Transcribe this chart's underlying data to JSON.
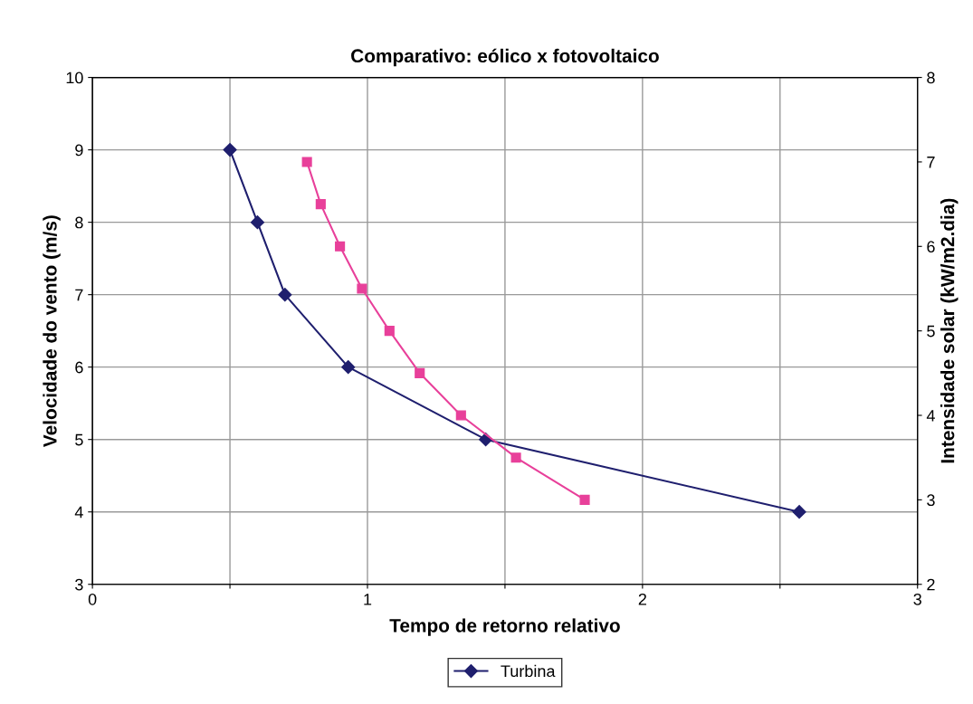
{
  "chart_data": {
    "type": "line",
    "title": "Comparativo: eólico x fotovoltaico",
    "xlabel": "Tempo de retorno relativo",
    "ylabel": "Velocidade do vento (m/s)",
    "y2label": "Intensidade solar (kW/m2.dia)",
    "xlim": [
      0,
      3
    ],
    "xticks": [
      0,
      {
        "value": 0.5,
        "label": null
      },
      1,
      {
        "value": 1.5,
        "label": null
      },
      2,
      {
        "value": 2.5,
        "label": null
      },
      3
    ],
    "ylim": [
      3,
      10
    ],
    "yticks": [
      3,
      4,
      5,
      6,
      7,
      8,
      9,
      10
    ],
    "y2lim": [
      2,
      8
    ],
    "y2ticks": [
      2,
      3,
      4,
      5,
      6,
      7,
      8
    ],
    "grid": true,
    "legend": "bottom",
    "line_style": "solid",
    "series": [
      {
        "name": "Turbina",
        "color": "#1f1f6e",
        "marker": "diamond",
        "x": [
          0.5,
          0.6,
          0.7,
          0.93,
          1.43,
          2.57
        ],
        "values": [
          9,
          8,
          7,
          6,
          5,
          4
        ]
      },
      {
        "color": "#e8409a",
        "marker": "square",
        "axis": "y2",
        "x": [
          0.78,
          0.83,
          0.9,
          0.98,
          1.08,
          1.19,
          1.34,
          1.54,
          1.79
        ],
        "values": [
          7,
          6.5,
          6,
          5.5,
          5,
          4.5,
          4,
          3.5,
          3
        ]
      }
    ]
  }
}
